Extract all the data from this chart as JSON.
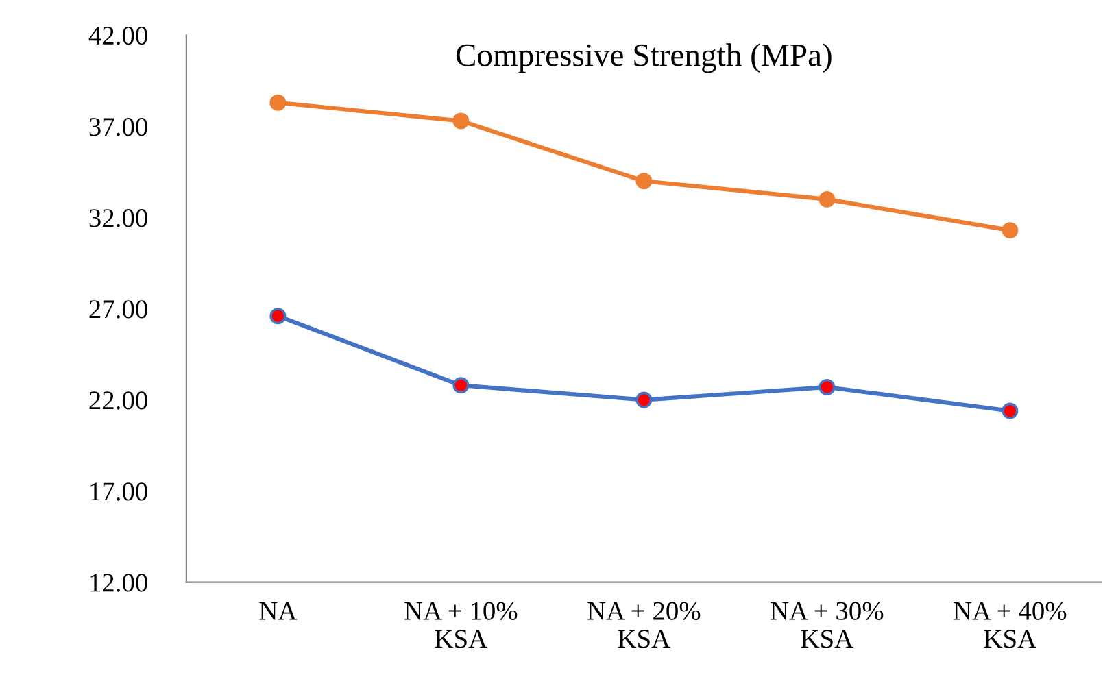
{
  "chart_data": {
    "type": "line",
    "title": "Compressive Strength (MPa)",
    "categories": [
      "NA",
      "NA + 10%\nKSA",
      "NA + 20%\nKSA",
      "NA + 30%\nKSA",
      "NA + 40%\nKSA"
    ],
    "series": [
      {
        "color": "#4472c4",
        "colors": [
          "#ff0000",
          "#ff0000",
          "#ff0000",
          "#ff0000",
          "#ff0000"
        ],
        "values": [
          26.6,
          22.8,
          22.0,
          22.7,
          21.4
        ]
      },
      {
        "color": "#ed7d31",
        "values": [
          38.3,
          37.3,
          34.0,
          33.0,
          31.3
        ]
      }
    ],
    "ylim": [
      12,
      42
    ],
    "yticks": [
      {
        "value": 12,
        "label": "12.00"
      },
      {
        "value": 17,
        "label": "17.00"
      },
      {
        "value": 22,
        "label": "22.00"
      },
      {
        "value": 27,
        "label": "27.00"
      },
      {
        "value": 32,
        "label": "32.00"
      },
      {
        "value": 37,
        "label": "37.00"
      },
      {
        "value": 42,
        "label": "42.00"
      }
    ],
    "marker": "circle",
    "line_style": "solid",
    "grid": false,
    "legend": false
  }
}
